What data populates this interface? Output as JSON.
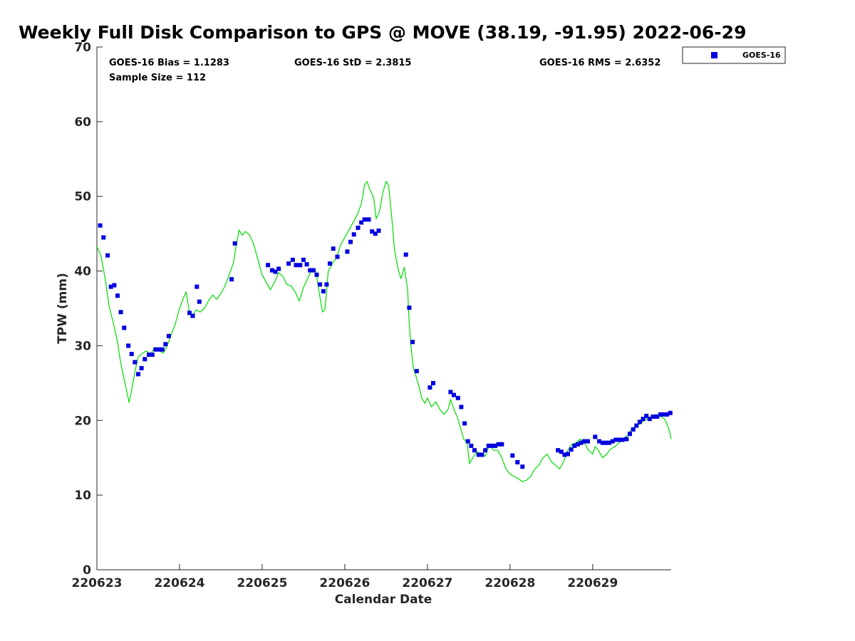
{
  "stats": {
    "bias": "GOES-16 Bias = 1.1283",
    "std": "GOES-16 StD = 2.3815",
    "rms": "GOES-16 RMS = 2.6352",
    "sample": "Sample Size = 112"
  },
  "colors": {
    "goes": "#0000e0",
    "gps": "#00dd00",
    "axis": "#262626"
  },
  "chart_data": {
    "type": "scatter",
    "title": "Weekly Full Disk Comparison to GPS @ MOVE (38.19, -91.95) 2022-06-29",
    "xlabel": "Calendar Date",
    "ylabel": "TPW (mm)",
    "xlim": [
      0,
      6.95
    ],
    "ylim": [
      0,
      70
    ],
    "yticks": [
      0,
      10,
      20,
      30,
      40,
      50,
      60,
      70
    ],
    "xticks": [
      {
        "x": 0,
        "label": "220623"
      },
      {
        "x": 1,
        "label": "220624"
      },
      {
        "x": 2,
        "label": "220625"
      },
      {
        "x": 3,
        "label": "220626"
      },
      {
        "x": 4,
        "label": "220627"
      },
      {
        "x": 5,
        "label": "220628"
      },
      {
        "x": 6,
        "label": "220629"
      }
    ],
    "grid": false,
    "legend_position": "outside-top-right",
    "legend_entries": [
      "GOES-16"
    ],
    "series": [
      {
        "name": "GOES-16",
        "kind": "scatter",
        "points": [
          [
            0.04,
            46.1
          ],
          [
            0.08,
            44.5
          ],
          [
            0.13,
            42.1
          ],
          [
            0.17,
            37.9
          ],
          [
            0.21,
            38.1
          ],
          [
            0.25,
            36.7
          ],
          [
            0.29,
            34.5
          ],
          [
            0.33,
            32.4
          ],
          [
            0.38,
            30.0
          ],
          [
            0.42,
            28.9
          ],
          [
            0.46,
            27.8
          ],
          [
            0.5,
            26.2
          ],
          [
            0.54,
            27.0
          ],
          [
            0.58,
            28.2
          ],
          [
            0.63,
            28.8
          ],
          [
            0.67,
            28.8
          ],
          [
            0.71,
            29.5
          ],
          [
            0.75,
            29.5
          ],
          [
            0.79,
            29.5
          ],
          [
            0.83,
            30.2
          ],
          [
            0.87,
            31.3
          ],
          [
            1.12,
            34.4
          ],
          [
            1.16,
            34.0
          ],
          [
            1.21,
            37.9
          ],
          [
            1.24,
            35.9
          ],
          [
            1.63,
            38.9
          ],
          [
            1.67,
            43.7
          ],
          [
            2.07,
            40.8
          ],
          [
            2.12,
            40.1
          ],
          [
            2.16,
            39.9
          ],
          [
            2.2,
            40.3
          ],
          [
            2.32,
            41.0
          ],
          [
            2.37,
            41.5
          ],
          [
            2.41,
            40.8
          ],
          [
            2.46,
            40.8
          ],
          [
            2.5,
            41.5
          ],
          [
            2.54,
            40.9
          ],
          [
            2.58,
            40.1
          ],
          [
            2.62,
            40.1
          ],
          [
            2.66,
            39.5
          ],
          [
            2.7,
            38.2
          ],
          [
            2.74,
            37.3
          ],
          [
            2.78,
            38.2
          ],
          [
            2.82,
            41.0
          ],
          [
            2.86,
            43.0
          ],
          [
            2.91,
            41.9
          ],
          [
            3.03,
            42.6
          ],
          [
            3.07,
            43.9
          ],
          [
            3.11,
            44.9
          ],
          [
            3.16,
            45.8
          ],
          [
            3.2,
            46.5
          ],
          [
            3.24,
            46.9
          ],
          [
            3.29,
            46.9
          ],
          [
            3.33,
            45.3
          ],
          [
            3.37,
            45.0
          ],
          [
            3.41,
            45.4
          ],
          [
            3.74,
            42.2
          ],
          [
            3.78,
            35.1
          ],
          [
            3.82,
            30.5
          ],
          [
            3.87,
            26.6
          ],
          [
            4.03,
            24.4
          ],
          [
            4.07,
            25.0
          ],
          [
            4.28,
            23.8
          ],
          [
            4.32,
            23.4
          ],
          [
            4.37,
            23.0
          ],
          [
            4.41,
            21.8
          ],
          [
            4.45,
            19.6
          ],
          [
            4.49,
            17.2
          ],
          [
            4.53,
            16.6
          ],
          [
            4.57,
            16.0
          ],
          [
            4.62,
            15.4
          ],
          [
            4.66,
            15.4
          ],
          [
            4.7,
            16.0
          ],
          [
            4.74,
            16.6
          ],
          [
            4.78,
            16.6
          ],
          [
            4.82,
            16.6
          ],
          [
            4.86,
            16.8
          ],
          [
            4.9,
            16.8
          ],
          [
            5.03,
            15.3
          ],
          [
            5.09,
            14.4
          ],
          [
            5.15,
            13.8
          ],
          [
            5.58,
            16.0
          ],
          [
            5.62,
            15.8
          ],
          [
            5.66,
            15.4
          ],
          [
            5.7,
            15.5
          ],
          [
            5.74,
            16.1
          ],
          [
            5.78,
            16.6
          ],
          [
            5.82,
            16.8
          ],
          [
            5.86,
            17.0
          ],
          [
            5.9,
            17.2
          ],
          [
            5.94,
            17.2
          ],
          [
            6.03,
            17.8
          ],
          [
            6.08,
            17.2
          ],
          [
            6.12,
            17.0
          ],
          [
            6.16,
            17.0
          ],
          [
            6.2,
            17.0
          ],
          [
            6.24,
            17.2
          ],
          [
            6.28,
            17.4
          ],
          [
            6.32,
            17.4
          ],
          [
            6.36,
            17.4
          ],
          [
            6.41,
            17.5
          ],
          [
            6.45,
            18.2
          ],
          [
            6.49,
            18.8
          ],
          [
            6.53,
            19.3
          ],
          [
            6.57,
            19.8
          ],
          [
            6.61,
            20.2
          ],
          [
            6.65,
            20.6
          ],
          [
            6.69,
            20.2
          ],
          [
            6.73,
            20.5
          ],
          [
            6.78,
            20.5
          ],
          [
            6.82,
            20.8
          ],
          [
            6.86,
            20.8
          ],
          [
            6.9,
            20.8
          ],
          [
            6.94,
            21.0
          ]
        ]
      },
      {
        "name": "GPS",
        "kind": "line",
        "points": [
          [
            0.0,
            43.3
          ],
          [
            0.05,
            42.0
          ],
          [
            0.1,
            39.0
          ],
          [
            0.15,
            35.2
          ],
          [
            0.2,
            33.0
          ],
          [
            0.25,
            30.5
          ],
          [
            0.28,
            28.2
          ],
          [
            0.32,
            26.0
          ],
          [
            0.36,
            24.0
          ],
          [
            0.39,
            22.4
          ],
          [
            0.42,
            24.0
          ],
          [
            0.46,
            26.5
          ],
          [
            0.5,
            28.5
          ],
          [
            0.55,
            29.0
          ],
          [
            0.6,
            29.3
          ],
          [
            0.65,
            28.8
          ],
          [
            0.7,
            29.8
          ],
          [
            0.75,
            29.4
          ],
          [
            0.8,
            29.0
          ],
          [
            0.85,
            30.0
          ],
          [
            0.9,
            31.5
          ],
          [
            0.95,
            33.0
          ],
          [
            1.0,
            35.0
          ],
          [
            1.05,
            36.5
          ],
          [
            1.08,
            37.2
          ],
          [
            1.12,
            34.5
          ],
          [
            1.16,
            34.0
          ],
          [
            1.2,
            34.8
          ],
          [
            1.25,
            34.5
          ],
          [
            1.3,
            35.0
          ],
          [
            1.35,
            36.0
          ],
          [
            1.4,
            36.8
          ],
          [
            1.45,
            36.2
          ],
          [
            1.5,
            37.0
          ],
          [
            1.55,
            38.0
          ],
          [
            1.6,
            39.5
          ],
          [
            1.65,
            41.0
          ],
          [
            1.68,
            43.0
          ],
          [
            1.72,
            45.5
          ],
          [
            1.76,
            44.8
          ],
          [
            1.8,
            45.3
          ],
          [
            1.85,
            44.8
          ],
          [
            1.9,
            43.5
          ],
          [
            1.95,
            41.5
          ],
          [
            2.0,
            39.5
          ],
          [
            2.05,
            38.5
          ],
          [
            2.1,
            37.5
          ],
          [
            2.15,
            38.5
          ],
          [
            2.2,
            39.8
          ],
          [
            2.25,
            39.3
          ],
          [
            2.3,
            38.2
          ],
          [
            2.35,
            38.0
          ],
          [
            2.4,
            37.2
          ],
          [
            2.45,
            36.0
          ],
          [
            2.5,
            37.8
          ],
          [
            2.55,
            39.0
          ],
          [
            2.6,
            40.2
          ],
          [
            2.65,
            40.0
          ],
          [
            2.7,
            36.5
          ],
          [
            2.73,
            34.5
          ],
          [
            2.76,
            34.8
          ],
          [
            2.8,
            40.0
          ],
          [
            2.85,
            41.0
          ],
          [
            2.9,
            41.8
          ],
          [
            2.95,
            43.5
          ],
          [
            3.0,
            44.5
          ],
          [
            3.05,
            45.5
          ],
          [
            3.1,
            46.5
          ],
          [
            3.15,
            47.5
          ],
          [
            3.2,
            49.0
          ],
          [
            3.24,
            51.5
          ],
          [
            3.27,
            52.0
          ],
          [
            3.3,
            51.0
          ],
          [
            3.35,
            49.8
          ],
          [
            3.38,
            47.0
          ],
          [
            3.42,
            48.0
          ],
          [
            3.46,
            50.5
          ],
          [
            3.5,
            52.0
          ],
          [
            3.53,
            51.5
          ],
          [
            3.57,
            47.0
          ],
          [
            3.6,
            43.0
          ],
          [
            3.64,
            40.5
          ],
          [
            3.68,
            39.0
          ],
          [
            3.72,
            40.5
          ],
          [
            3.76,
            37.5
          ],
          [
            3.78,
            33.0
          ],
          [
            3.8,
            30.0
          ],
          [
            3.83,
            27.0
          ],
          [
            3.86,
            26.0
          ],
          [
            3.9,
            24.5
          ],
          [
            3.93,
            23.0
          ],
          [
            3.97,
            22.3
          ],
          [
            4.0,
            23.0
          ],
          [
            4.05,
            21.8
          ],
          [
            4.1,
            22.5
          ],
          [
            4.15,
            21.5
          ],
          [
            4.2,
            20.8
          ],
          [
            4.25,
            21.5
          ],
          [
            4.28,
            22.8
          ],
          [
            4.32,
            21.5
          ],
          [
            4.36,
            20.5
          ],
          [
            4.4,
            19.0
          ],
          [
            4.44,
            17.5
          ],
          [
            4.48,
            17.0
          ],
          [
            4.51,
            14.2
          ],
          [
            4.55,
            15.0
          ],
          [
            4.6,
            15.8
          ],
          [
            4.65,
            15.5
          ],
          [
            4.7,
            15.2
          ],
          [
            4.75,
            16.8
          ],
          [
            4.8,
            16.0
          ],
          [
            4.85,
            16.0
          ],
          [
            4.9,
            15.0
          ],
          [
            4.95,
            13.5
          ],
          [
            5.0,
            12.8
          ],
          [
            5.05,
            12.5
          ],
          [
            5.1,
            12.2
          ],
          [
            5.15,
            11.8
          ],
          [
            5.2,
            12.0
          ],
          [
            5.25,
            12.5
          ],
          [
            5.3,
            13.5
          ],
          [
            5.35,
            14.0
          ],
          [
            5.4,
            15.0
          ],
          [
            5.45,
            15.5
          ],
          [
            5.5,
            14.5
          ],
          [
            5.55,
            14.0
          ],
          [
            5.6,
            13.5
          ],
          [
            5.65,
            14.5
          ],
          [
            5.7,
            16.0
          ],
          [
            5.75,
            16.8
          ],
          [
            5.8,
            17.0
          ],
          [
            5.85,
            17.5
          ],
          [
            5.9,
            17.0
          ],
          [
            5.95,
            16.0
          ],
          [
            6.0,
            15.5
          ],
          [
            6.03,
            16.5
          ],
          [
            6.07,
            16.0
          ],
          [
            6.12,
            15.0
          ],
          [
            6.17,
            15.5
          ],
          [
            6.22,
            16.2
          ],
          [
            6.27,
            16.5
          ],
          [
            6.32,
            17.0
          ],
          [
            6.37,
            17.5
          ],
          [
            6.42,
            18.0
          ],
          [
            6.47,
            18.8
          ],
          [
            6.52,
            19.2
          ],
          [
            6.57,
            19.5
          ],
          [
            6.62,
            20.0
          ],
          [
            6.67,
            20.2
          ],
          [
            6.72,
            20.5
          ],
          [
            6.77,
            20.8
          ],
          [
            6.82,
            20.5
          ],
          [
            6.87,
            20.2
          ],
          [
            6.9,
            19.5
          ],
          [
            6.93,
            18.5
          ],
          [
            6.95,
            17.5
          ]
        ]
      }
    ]
  }
}
